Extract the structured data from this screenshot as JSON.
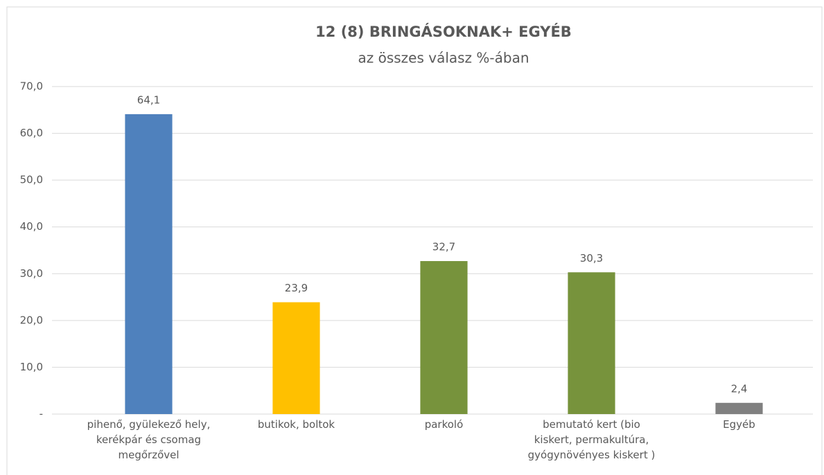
{
  "chart_data": {
    "type": "bar",
    "title": "12 (8) BRINGÁSOKNAK+ EGYÉB",
    "subtitle": "az összes válasz %-ában",
    "categories": [
      "pihenő, gyülekező hely, kerékpár és csomag megőrzővel",
      "butikok, boltok",
      "parkoló",
      "bemutató kert (bio kiskert, permakultúra, gyógynövényes kiskert )",
      "Egyéb"
    ],
    "values": [
      64.1,
      23.9,
      32.7,
      30.3,
      2.4
    ],
    "value_labels": [
      "64,1",
      "23,9",
      "32,7",
      "30,3",
      "2,4"
    ],
    "colors": [
      "#4f81bd",
      "#ffc000",
      "#77933c",
      "#77933c",
      "#808080"
    ],
    "ylim": [
      0,
      70
    ],
    "yticks": [
      {
        "value": 0,
        "label": "-"
      },
      {
        "value": 10,
        "label": "10,0"
      },
      {
        "value": 20,
        "label": "20,0"
      },
      {
        "value": 30,
        "label": "30,0"
      },
      {
        "value": 40,
        "label": "40,0"
      },
      {
        "value": 50,
        "label": "50,0"
      },
      {
        "value": 60,
        "label": "60,0"
      },
      {
        "value": 70,
        "label": "70,0"
      }
    ],
    "grid": true
  }
}
